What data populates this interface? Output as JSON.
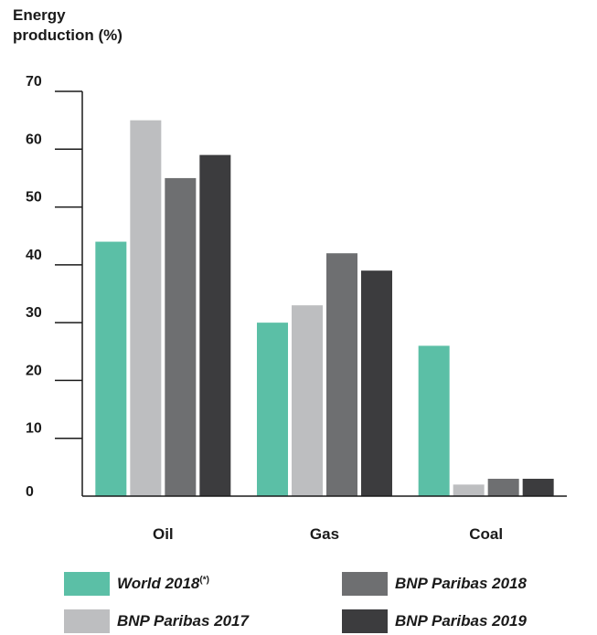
{
  "chart_data": {
    "type": "bar",
    "ylabel_lines": [
      "Energy",
      "production (%)"
    ],
    "xlabel": "",
    "ylim": [
      0,
      70
    ],
    "yticks": [
      0,
      10,
      20,
      30,
      40,
      50,
      60,
      70
    ],
    "categories": [
      "Oil",
      "Gas",
      "Coal"
    ],
    "series": [
      {
        "name": "World 2018",
        "note": "(*)",
        "color": "#5bbfa6",
        "values": [
          44,
          30,
          26
        ]
      },
      {
        "name": "BNP Paribas 2017",
        "note": "",
        "color": "#bdbec0",
        "values": [
          65,
          33,
          2
        ]
      },
      {
        "name": "BNP Paribas 2018",
        "note": "",
        "color": "#6e6f71",
        "values": [
          55,
          42,
          3
        ]
      },
      {
        "name": "BNP Paribas 2019",
        "note": "",
        "color": "#3c3c3e",
        "values": [
          59,
          39,
          3
        ]
      }
    ],
    "legend_position": "bottom",
    "grid": false
  }
}
